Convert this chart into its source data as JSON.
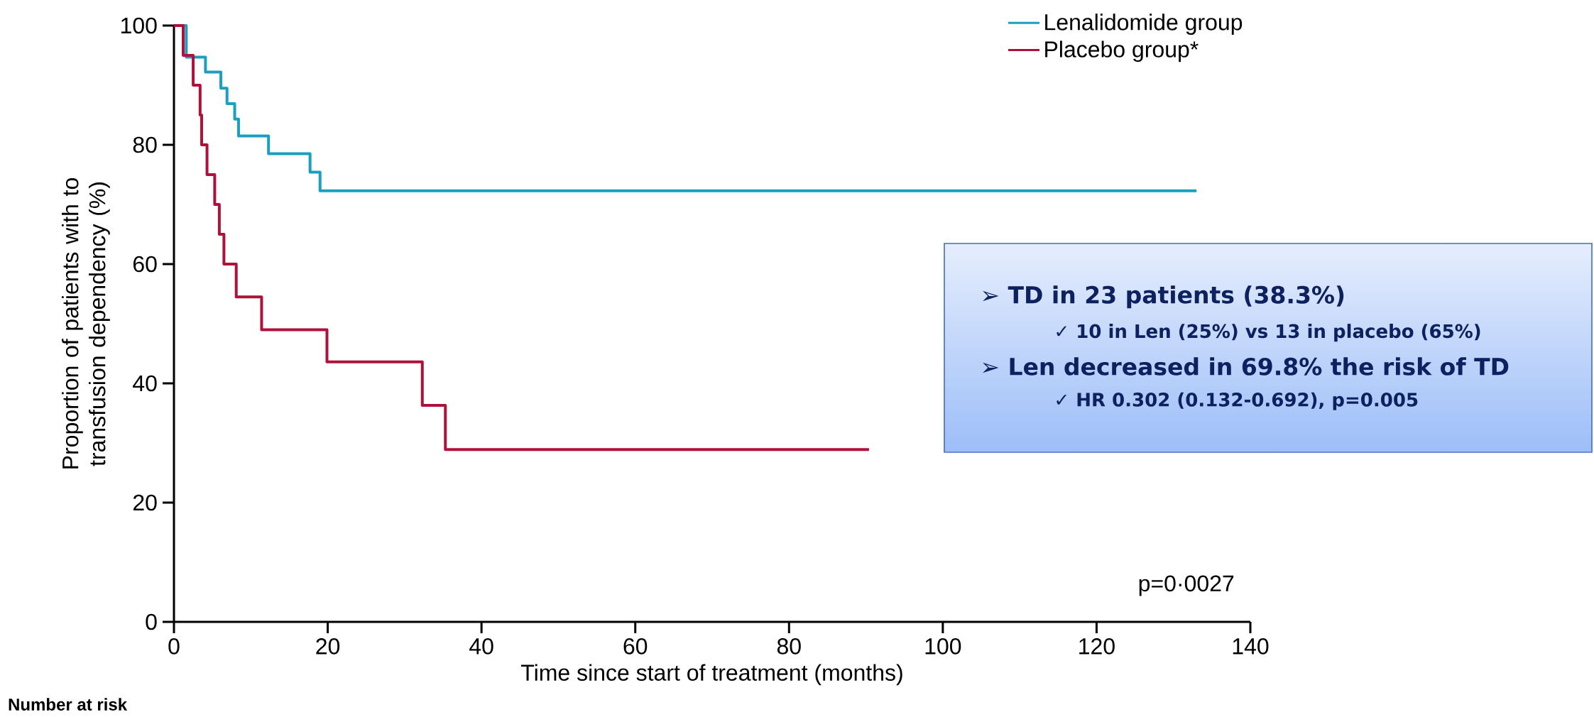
{
  "chart_data": {
    "type": "step",
    "xlabel": "Time since start of treatment (months)",
    "ylabel": "Proportion of patients with to transfusion dependency (%)",
    "xlim": [
      0,
      140
    ],
    "xticks": [
      0,
      20,
      40,
      60,
      80,
      100,
      120,
      140
    ],
    "ylim": [
      0,
      100
    ],
    "yticks": [
      0,
      20,
      40,
      60,
      80,
      100
    ],
    "legend": "top right",
    "marker": "none",
    "line_style": "solid",
    "series": [
      {
        "name": "Lenalidomide group",
        "color": "#1a9fc0",
        "x": [
          0,
          1.6,
          4.1,
          6.1,
          6.9,
          7.9,
          8.4,
          12.3,
          17.7,
          19.0,
          133
        ],
        "values": [
          100,
          94.7,
          92.2,
          89.5,
          86.9,
          84.3,
          81.5,
          78.5,
          75.4,
          72.3,
          72.3
        ]
      },
      {
        "name": "Placebo group*",
        "color": "#b0103a",
        "x": [
          0,
          1.2,
          2.5,
          3.4,
          3.6,
          4.3,
          5.3,
          5.9,
          6.5,
          8.1,
          11.4,
          19.9,
          32.3,
          35.3,
          90.4
        ],
        "values": [
          100,
          95,
          90,
          85,
          80,
          75,
          70,
          65,
          60,
          54.5,
          49,
          43.6,
          36.3,
          28.9,
          28.9
        ]
      }
    ],
    "annotations": [
      "➢ TD in 23 patients (38.3%)",
      "✓ 10 in Len (25%) vs 13 in placebo (65%)",
      "➢ Len decreased in 69.8% the risk of TD",
      "✓ HR 0.302 (0.132-0.692), p=0.005",
      "p=0·0027",
      "Number at risk"
    ]
  }
}
